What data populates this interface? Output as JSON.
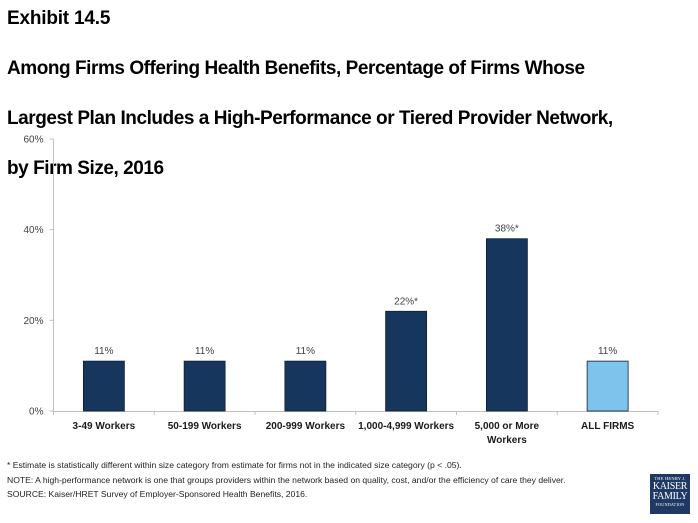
{
  "header": {
    "exhibit": "Exhibit 14.5",
    "title_lines": [
      "Among Firms Offering Health Benefits, Percentage of Firms Whose",
      "Largest Plan Includes a High-Performance or Tiered Provider Network,",
      "by Firm Size, 2016"
    ]
  },
  "chart_data": {
    "type": "bar",
    "title": "Among Firms Offering Health Benefits, Percentage of Firms Whose Largest Plan Includes a High-Performance or Tiered Provider Network, by Firm Size, 2016",
    "xlabel": "",
    "ylabel": "",
    "ylim": [
      0,
      60
    ],
    "yticks": [
      0,
      20,
      40,
      60
    ],
    "ytick_labels": [
      "0%",
      "20%",
      "40%",
      "60%"
    ],
    "grid": false,
    "categories": [
      [
        "3-49 Workers"
      ],
      [
        "50-199 Workers"
      ],
      [
        "200-999 Workers"
      ],
      [
        "1,000-4,999 Workers"
      ],
      [
        "5,000 or More",
        "Workers"
      ],
      [
        "ALL FIRMS"
      ]
    ],
    "values": [
      11,
      11,
      11,
      22,
      38,
      11
    ],
    "data_labels": [
      "11%",
      "11%",
      "11%",
      "22%*",
      "38%*",
      "11%"
    ],
    "significant": [
      false,
      false,
      false,
      true,
      true,
      false
    ],
    "colors": [
      "#17365d",
      "#17365d",
      "#17365d",
      "#17365d",
      "#17365d",
      "#7dc3ec"
    ],
    "legend": "none"
  },
  "footer": {
    "footnote": "* Estimate is statistically different within size category from estimate for firms not in the indicated size category (p < .05).",
    "note": "NOTE: A high-performance network is one that groups providers within the network based on quality, cost, and/or the efficiency of care they deliver.",
    "source": "SOURCE: Kaiser/HRET Survey of Employer-Sponsored Health Benefits, 2016."
  },
  "logo": {
    "line1": "THE HENRY J.",
    "line2": "KAISER",
    "line3": "FAMILY",
    "line4": "FOUNDATION"
  }
}
